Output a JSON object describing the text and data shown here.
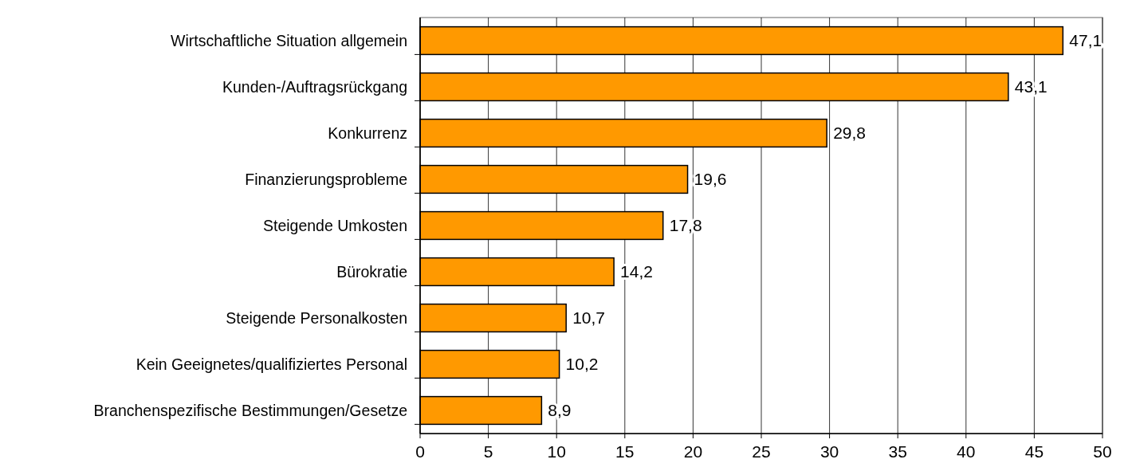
{
  "chart_data": {
    "type": "bar",
    "orientation": "horizontal",
    "categories": [
      "Wirtschaftliche Situation allgemein",
      "Kunden-/Auftragsrückgang",
      "Konkurrenz",
      "Finanzierungsprobleme",
      "Steigende Umkosten",
      "Bürokratie",
      "Steigende Personalkosten",
      "Kein Geeignetes/qualifiziertes Personal",
      "Branchenspezifische Bestimmungen/Gesetze"
    ],
    "values": [
      47.1,
      43.1,
      29.8,
      19.6,
      17.8,
      14.2,
      10.7,
      10.2,
      8.9
    ],
    "value_labels": [
      "47,1",
      "43,1",
      "29,8",
      "19,6",
      "17,8",
      "14,2",
      "10,7",
      "10,2",
      "8,9"
    ],
    "color": "#ff9900",
    "xlim": [
      0,
      50
    ],
    "xticks": [
      0,
      5,
      10,
      15,
      20,
      25,
      30,
      35,
      40,
      45,
      50
    ],
    "grid": "x"
  }
}
